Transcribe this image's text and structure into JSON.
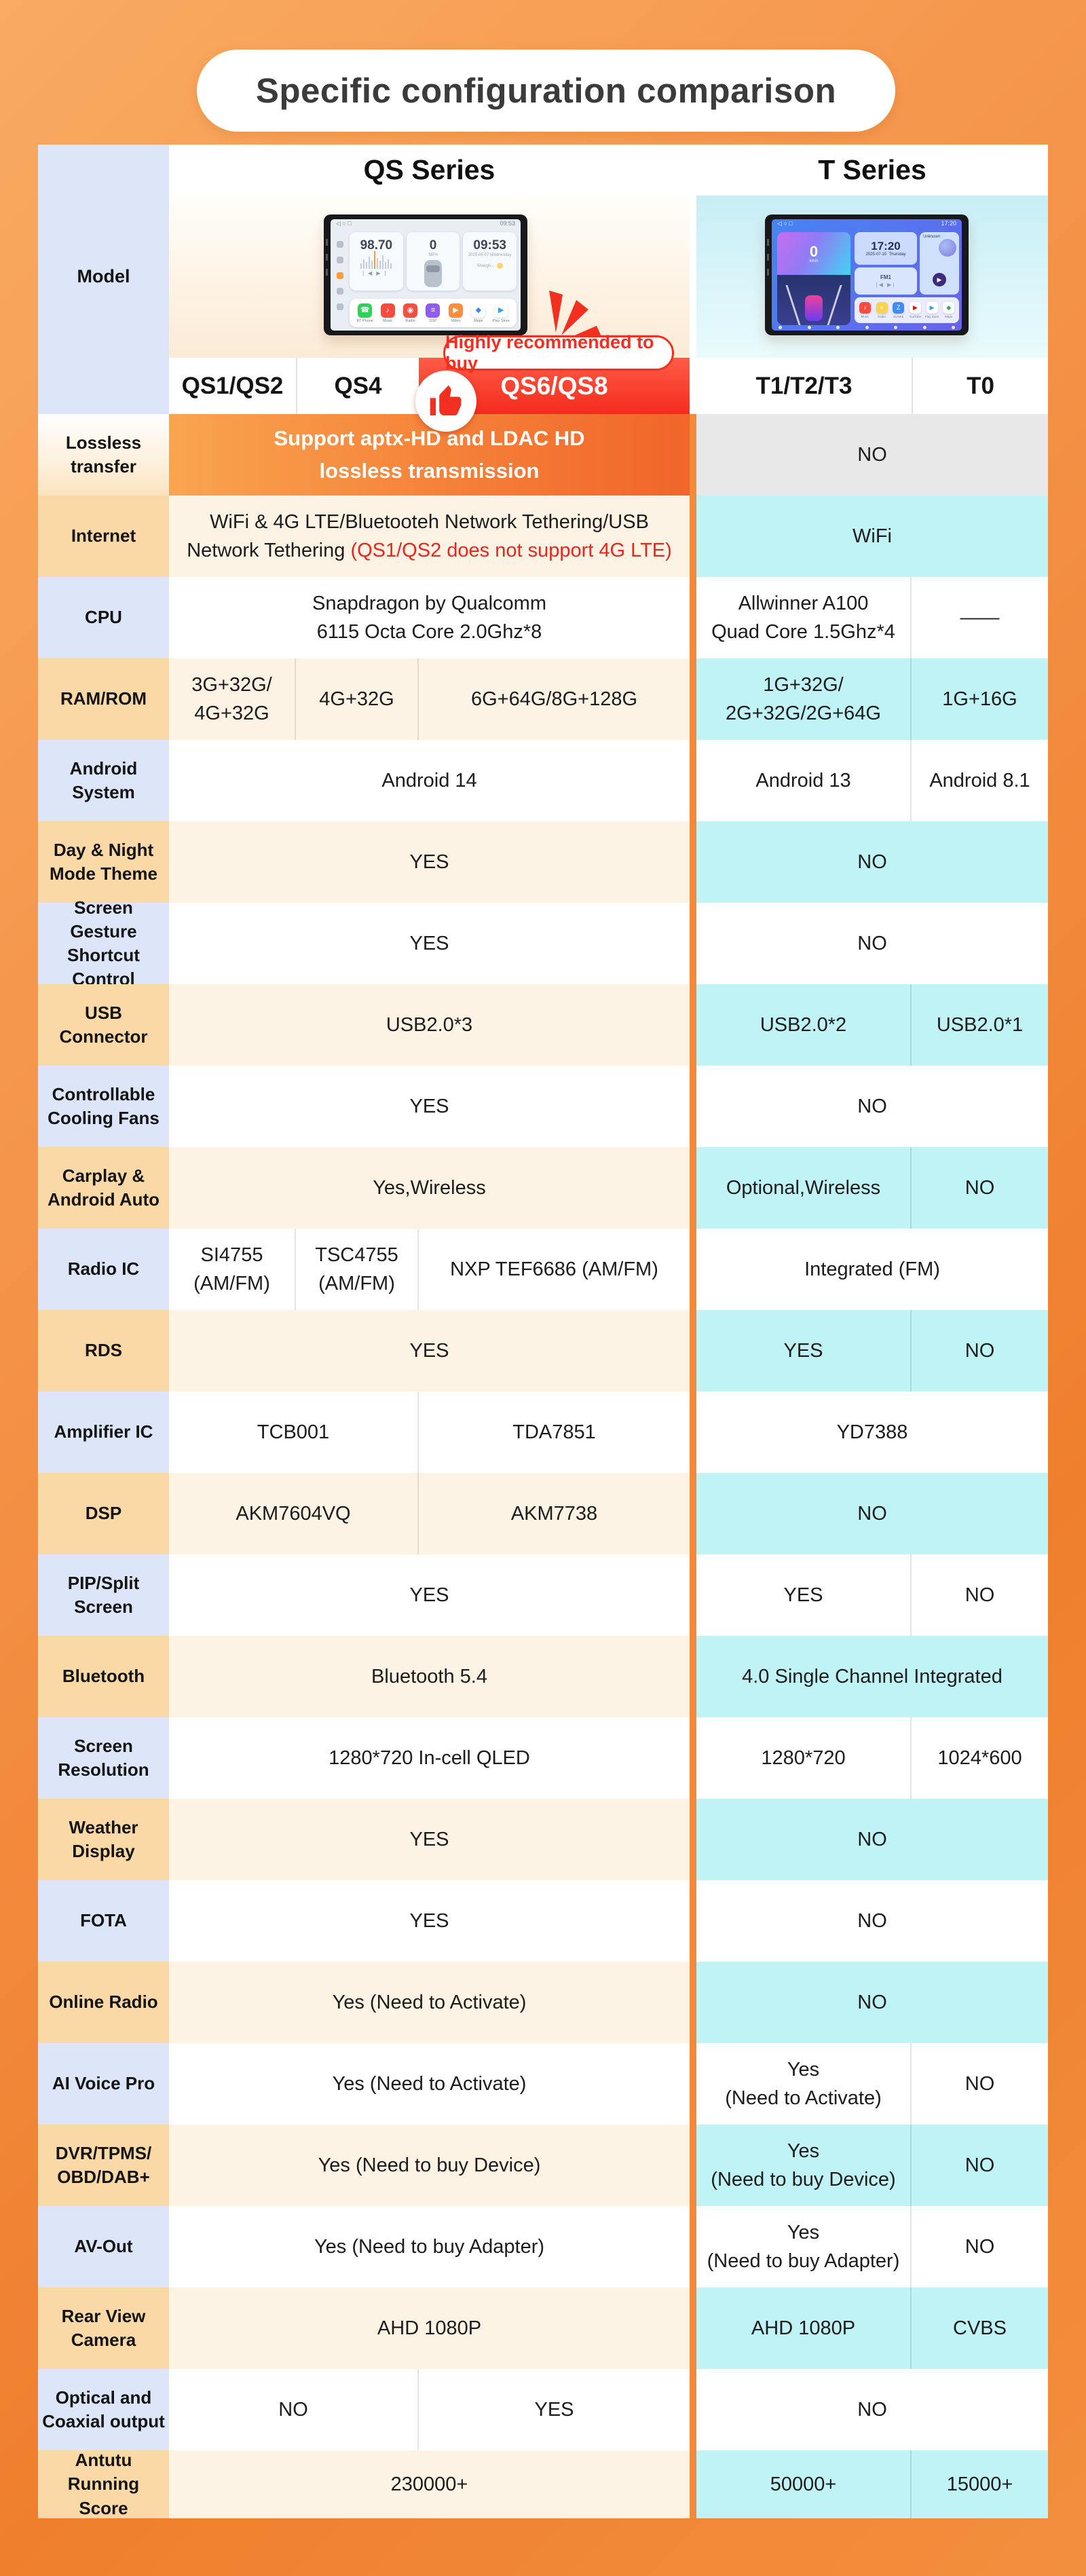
{
  "title": "Specific configuration comparison",
  "colors": {
    "page_orange": "#f1843a",
    "highlight_red": "#f5301f",
    "cell_cyan": "#c0f3f5",
    "cell_cream": "#fdf3e5",
    "label_lavender": "#dde6f8",
    "label_orange": "#fbd9a6",
    "highlight_orange_start": "#f9a54f",
    "highlight_orange_end": "#f1652a",
    "no_gray": "#e9e8e8",
    "note_red": "#e8271c"
  },
  "table": {
    "series_headers": {
      "qs": "QS Series",
      "t": "T Series"
    },
    "model_label": "Model",
    "model_sublabels": {
      "qs1": "QS1/QS2",
      "qs2": "QS4",
      "qs3": "QS6/QS8",
      "t1": "T1/T2/T3",
      "t0": "T0"
    },
    "recommend_banner": "Highly recommended to buy"
  },
  "qs_device": {
    "status_left": "◁   ○   □",
    "status_right": "09:53",
    "radio_freq": "98.70",
    "prev_icon": "|◀",
    "next_icon": "▶|",
    "speed": "0",
    "speed_unit": "MPH",
    "time": "09:53",
    "date": "2025-05-07 Wednesday",
    "weather_city": "Shangh...",
    "dock_apps": [
      {
        "label": "BT Phone",
        "glyph": "☎",
        "bg": "#31d158",
        "fg": "#ffffff"
      },
      {
        "label": "Music",
        "glyph": "♪",
        "bg": "#fb4a3e",
        "fg": "#ffffff"
      },
      {
        "label": "Radio",
        "glyph": "◉",
        "bg": "#f5503c",
        "fg": "#ffffff"
      },
      {
        "label": "DSP",
        "glyph": "≡",
        "bg": "#8e5cf0",
        "fg": "#ffffff"
      },
      {
        "label": "Video",
        "glyph": "▶",
        "bg": "#ff8d3a",
        "fg": "#ffffff"
      },
      {
        "label": "Maps",
        "glyph": "◆",
        "bg": "#ffffff",
        "fg": "#4285f4"
      },
      {
        "label": "Play Store",
        "glyph": "▶",
        "bg": "#ffffff",
        "fg": "#34a0f4"
      }
    ]
  },
  "t_device": {
    "status_left": "◁   ○   □",
    "status_right": "17:20",
    "speed": "0",
    "speed_unit": "km/h",
    "time": "17:20",
    "date": "2025-07-10",
    "weekday": "Thursday",
    "radio_band": "FM1",
    "transport": "|◀        ▶|",
    "track": "Unknown",
    "play_icon": "▶",
    "apps": [
      {
        "label": "Music",
        "glyph": "♪",
        "bg": "#fb4a3e",
        "fg": "#ffffff"
      },
      {
        "label": "Radio",
        "glyph": "≡",
        "bg": "#ffd34d",
        "fg": "#ffffff"
      },
      {
        "label": "ZLINK5",
        "glyph": "Z",
        "bg": "#3d8df5",
        "fg": "#ffffff"
      },
      {
        "label": "YouTube",
        "glyph": "▶",
        "bg": "#ffffff",
        "fg": "#fe0000"
      },
      {
        "label": "Play Store",
        "glyph": "▶",
        "bg": "#ffffff",
        "fg": "#34a0f4"
      },
      {
        "label": "Maps",
        "glyph": "◆",
        "bg": "#ffffff",
        "fg": "#35a854"
      }
    ]
  },
  "rows": [
    {
      "label": "Lossless\ntransfer",
      "theme": "warm",
      "label_fade": true,
      "qs": [
        {
          "text": "Support aptx-HD and LDAC HD\nlossless transmission",
          "span": 3,
          "bg": "orange"
        }
      ],
      "t": [
        {
          "text": "NO",
          "span": 2,
          "bg": "gray"
        }
      ]
    },
    {
      "label": "Internet",
      "theme": "warm",
      "qs": [
        {
          "text": "WiFi & 4G LTE/Bluetooteh Network Tethering/USB Network Tethering ",
          "note": "(QS1/QS2 does not support 4G LTE)",
          "span": 3
        }
      ],
      "t": [
        {
          "text": "WiFi",
          "span": 2
        }
      ]
    },
    {
      "label": "CPU",
      "theme": "cool",
      "qs": [
        {
          "text": "Snapdragon by Qualcomm\n6115 Octa Core 2.0Ghz*8",
          "span": 3
        }
      ],
      "t": [
        {
          "text": "Allwinner A100\nQuad Core 1.5Ghz*4"
        },
        {
          "text": "——"
        }
      ]
    },
    {
      "label": "RAM/ROM",
      "theme": "warm",
      "qs": [
        {
          "text": "3G+32G/\n4G+32G"
        },
        {
          "text": "4G+32G"
        },
        {
          "text": "6G+64G/8G+128G"
        }
      ],
      "t": [
        {
          "text": "1G+32G/\n2G+32G/2G+64G"
        },
        {
          "text": "1G+16G"
        }
      ]
    },
    {
      "label": "Android\nSystem",
      "theme": "cool",
      "qs": [
        {
          "text": "Android 14",
          "span": 3
        }
      ],
      "t": [
        {
          "text": "Android 13"
        },
        {
          "text": "Android 8.1"
        }
      ]
    },
    {
      "label": "Day & Night\nMode Theme",
      "theme": "warm",
      "qs": [
        {
          "text": "YES",
          "span": 3
        }
      ],
      "t": [
        {
          "text": "NO",
          "span": 2
        }
      ]
    },
    {
      "label": "Screen Gesture\nShortcut Control",
      "theme": "cool",
      "qs": [
        {
          "text": "YES",
          "span": 3
        }
      ],
      "t": [
        {
          "text": "NO",
          "span": 2
        }
      ]
    },
    {
      "label": "USB Connector",
      "theme": "warm",
      "qs": [
        {
          "text": "USB2.0*3",
          "span": 3
        }
      ],
      "t": [
        {
          "text": "USB2.0*2"
        },
        {
          "text": "USB2.0*1"
        }
      ]
    },
    {
      "label": "Controllable\nCooling Fans",
      "theme": "cool",
      "qs": [
        {
          "text": "YES",
          "span": 3
        }
      ],
      "t": [
        {
          "text": "NO",
          "span": 2
        }
      ]
    },
    {
      "label": "Carplay &\nAndroid Auto",
      "theme": "warm",
      "qs": [
        {
          "text": "Yes,Wireless",
          "span": 3
        }
      ],
      "t": [
        {
          "text": "Optional,Wireless"
        },
        {
          "text": "NO"
        }
      ]
    },
    {
      "label": "Radio IC",
      "theme": "cool",
      "qs": [
        {
          "text": "SI4755\n(AM/FM)"
        },
        {
          "text": "TSC4755\n(AM/FM)"
        },
        {
          "text": "NXP TEF6686 (AM/FM)"
        }
      ],
      "t": [
        {
          "text": "Integrated (FM)",
          "span": 2
        }
      ]
    },
    {
      "label": "RDS",
      "theme": "warm",
      "qs": [
        {
          "text": "YES",
          "span": 3
        }
      ],
      "t": [
        {
          "text": "YES"
        },
        {
          "text": "NO"
        }
      ]
    },
    {
      "label": "Amplifier IC",
      "theme": "cool",
      "qs": [
        {
          "text": "TCB001",
          "span": 2
        },
        {
          "text": "TDA7851"
        }
      ],
      "t": [
        {
          "text": "YD7388",
          "span": 2
        }
      ]
    },
    {
      "label": "DSP",
      "theme": "warm",
      "qs": [
        {
          "text": "AKM7604VQ",
          "span": 2
        },
        {
          "text": "AKM7738"
        }
      ],
      "t": [
        {
          "text": "NO",
          "span": 2
        }
      ]
    },
    {
      "label": "PIP/Split\nScreen",
      "theme": "cool",
      "qs": [
        {
          "text": "YES",
          "span": 3
        }
      ],
      "t": [
        {
          "text": "YES"
        },
        {
          "text": "NO"
        }
      ]
    },
    {
      "label": "Bluetooth",
      "theme": "warm",
      "qs": [
        {
          "text": "Bluetooth 5.4",
          "span": 3
        }
      ],
      "t": [
        {
          "text": "4.0 Single Channel Integrated",
          "span": 2
        }
      ]
    },
    {
      "label": "Screen\nResolution",
      "theme": "cool",
      "qs": [
        {
          "text": "1280*720 In-cell QLED",
          "span": 3
        }
      ],
      "t": [
        {
          "text": "1280*720"
        },
        {
          "text": "1024*600"
        }
      ]
    },
    {
      "label": "Weather\nDisplay",
      "theme": "warm",
      "qs": [
        {
          "text": "YES",
          "span": 3
        }
      ],
      "t": [
        {
          "text": "NO",
          "span": 2
        }
      ]
    },
    {
      "label": "FOTA",
      "theme": "cool",
      "qs": [
        {
          "text": "YES",
          "span": 3
        }
      ],
      "t": [
        {
          "text": "NO",
          "span": 2
        }
      ]
    },
    {
      "label": "Online Radio",
      "theme": "warm",
      "qs": [
        {
          "text": "Yes (Need to Activate)",
          "span": 3
        }
      ],
      "t": [
        {
          "text": "NO",
          "span": 2
        }
      ]
    },
    {
      "label": "AI Voice Pro",
      "theme": "cool",
      "qs": [
        {
          "text": "Yes (Need to Activate)",
          "span": 3
        }
      ],
      "t": [
        {
          "text": "Yes\n(Need to Activate)"
        },
        {
          "text": "NO"
        }
      ]
    },
    {
      "label": "DVR/TPMS/\nOBD/DAB+",
      "theme": "warm",
      "qs": [
        {
          "text": "Yes (Need to buy Device)",
          "span": 3
        }
      ],
      "t": [
        {
          "text": "Yes\n(Need to buy Device)"
        },
        {
          "text": "NO"
        }
      ]
    },
    {
      "label": "AV-Out",
      "theme": "cool",
      "qs": [
        {
          "text": "Yes (Need to buy Adapter)",
          "span": 3
        }
      ],
      "t": [
        {
          "text": "Yes\n(Need to buy Adapter)"
        },
        {
          "text": "NO"
        }
      ]
    },
    {
      "label": "Rear View\nCamera",
      "theme": "warm",
      "qs": [
        {
          "text": "AHD 1080P",
          "span": 3
        }
      ],
      "t": [
        {
          "text": "AHD 1080P"
        },
        {
          "text": "CVBS"
        }
      ]
    },
    {
      "label": "Optical and\nCoaxial output",
      "theme": "cool",
      "qs": [
        {
          "text": "NO",
          "span": 2
        },
        {
          "text": "YES"
        }
      ],
      "t": [
        {
          "text": "NO",
          "span": 2
        }
      ]
    },
    {
      "label": "Antutu Running\nScore",
      "theme": "warm",
      "h": 100,
      "qs": [
        {
          "text": "230000+",
          "span": 3
        }
      ],
      "t": [
        {
          "text": "50000+"
        },
        {
          "text": "15000+"
        }
      ]
    }
  ]
}
